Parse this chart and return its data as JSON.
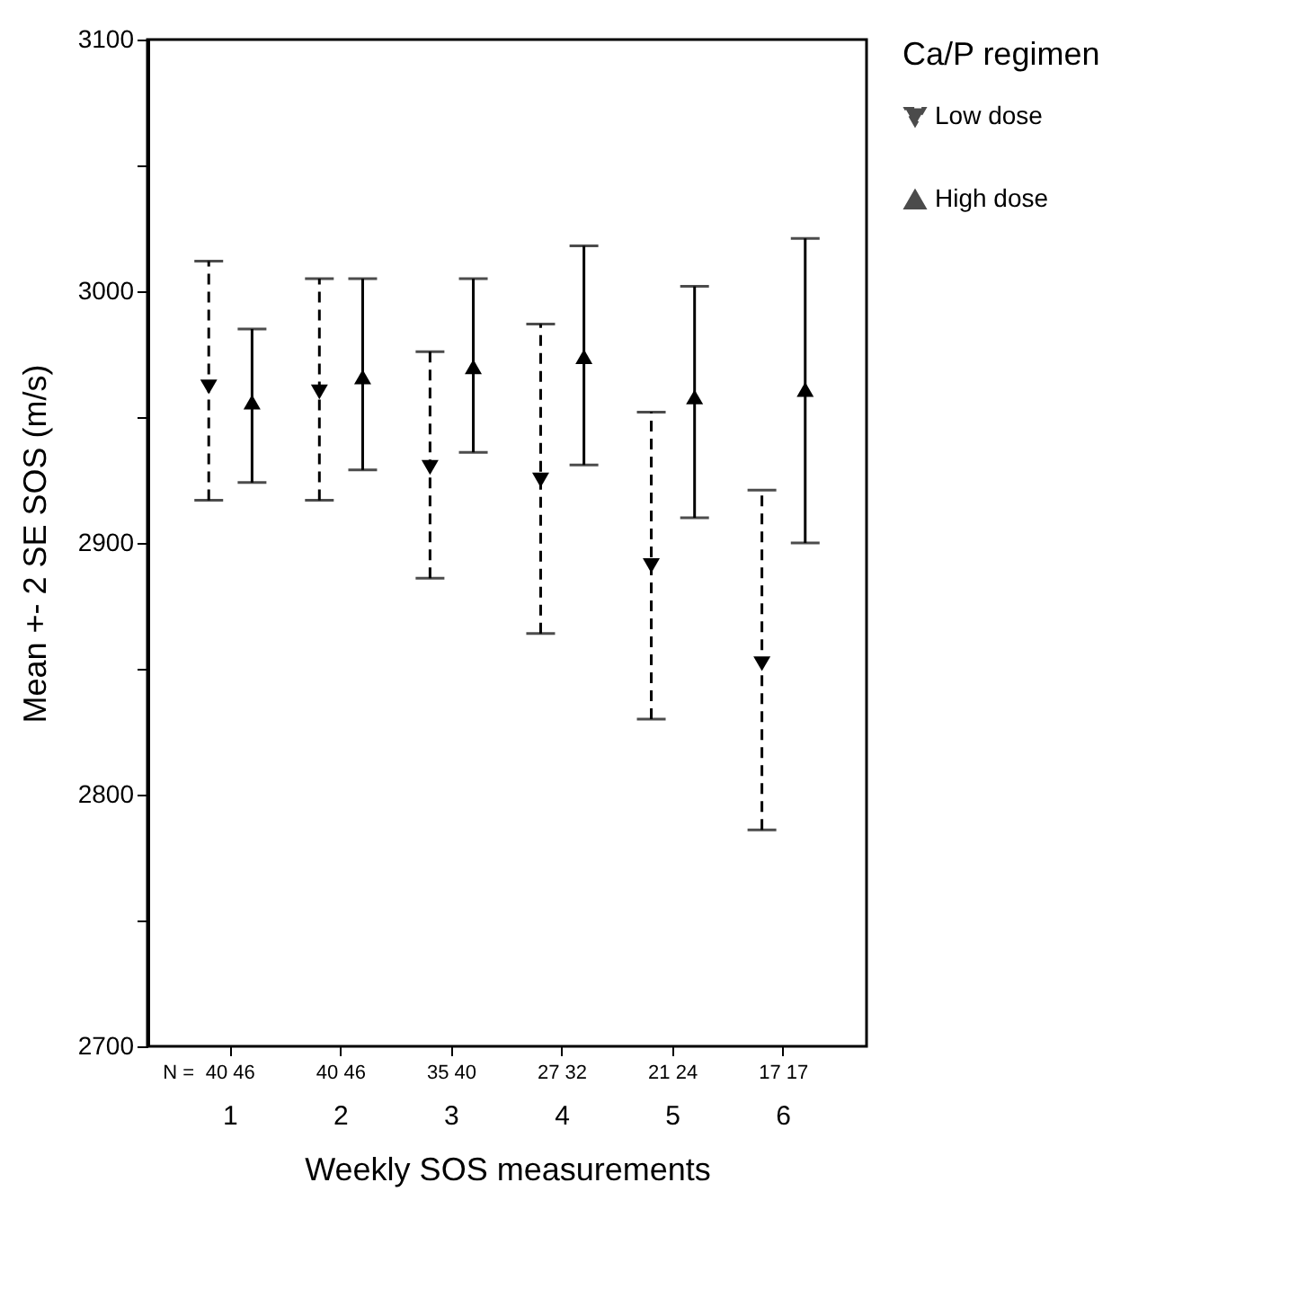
{
  "chart_data": {
    "type": "scatter",
    "ylabel": "Mean +- 2 SE SOS (m/s)",
    "xlabel": "Weekly SOS measurements",
    "legend_title": "Ca/P regimen",
    "categories": [
      "1",
      "2",
      "3",
      "4",
      "5",
      "6"
    ],
    "series": [
      {
        "name": "Low dose",
        "color": "#000000",
        "marker": "triangle-down",
        "line_style": "dashed",
        "values": [
          2962,
          2960,
          2930,
          2925,
          2891,
          2852
        ],
        "errors": [
          [
            2917,
            3012
          ],
          [
            2917,
            3005
          ],
          [
            2886,
            2976
          ],
          [
            2864,
            2987
          ],
          [
            2830,
            2952
          ],
          [
            2786,
            2921
          ]
        ]
      },
      {
        "name": "High dose",
        "color": "#000000",
        "marker": "triangle-up",
        "line_style": "solid",
        "values": [
          2956,
          2966,
          2970,
          2974,
          2958,
          2961
        ],
        "errors": [
          [
            2924,
            2985
          ],
          [
            2929,
            3005
          ],
          [
            2936,
            3005
          ],
          [
            2931,
            3018
          ],
          [
            2910,
            3002
          ],
          [
            2900,
            3021
          ]
        ]
      }
    ],
    "ylim": [
      2700,
      3100
    ],
    "yticks": [
      2700,
      {
        "value": 2750,
        "label": null
      },
      2800,
      {
        "value": 2850,
        "label": null
      },
      2900,
      {
        "value": 2950,
        "label": null
      },
      3000,
      {
        "value": 3050,
        "label": null
      },
      3100
    ],
    "grid": false,
    "legend": "right",
    "annotations": [
      "N =",
      "40 46",
      "40 46",
      "35 40",
      "27 32",
      "21 24",
      "17 17"
    ]
  }
}
